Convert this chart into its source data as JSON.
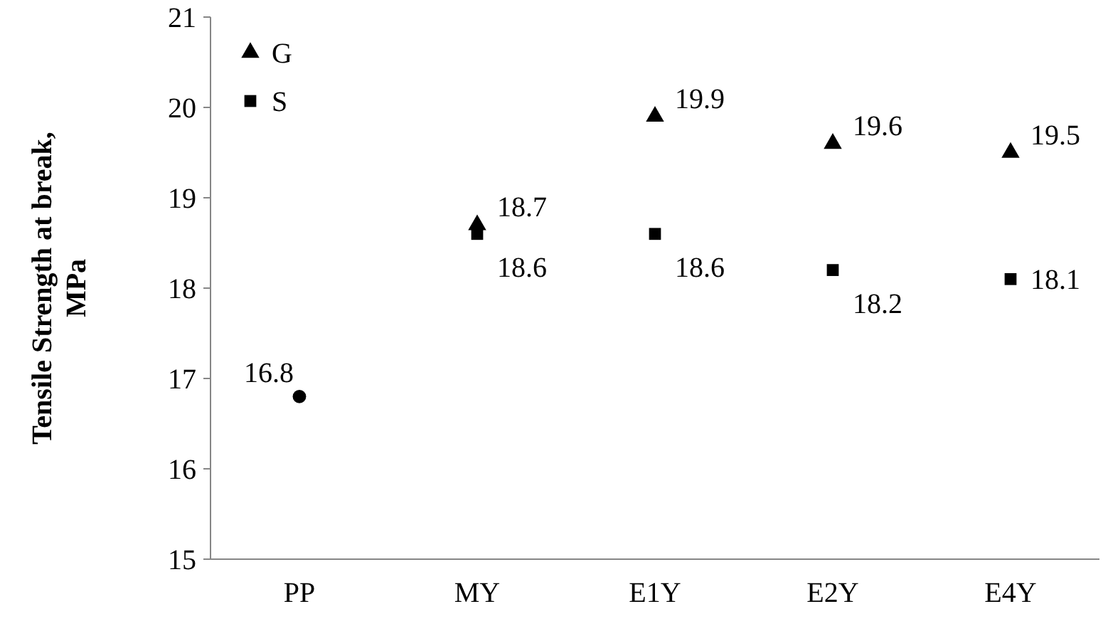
{
  "chart_data": {
    "type": "scatter",
    "ylabel": "Tensile Strength at break, MPa",
    "categories": [
      "PP",
      "MY",
      "E1Y",
      "E2Y",
      "E4Y"
    ],
    "series": [
      {
        "name": "G",
        "color": "#000000",
        "marker": "triangle",
        "values": [
          null,
          18.7,
          19.9,
          19.6,
          19.5
        ]
      },
      {
        "name": "S",
        "color": "#000000",
        "marker": "square",
        "values": [
          null,
          18.6,
          18.6,
          18.2,
          18.1
        ]
      },
      {
        "color": "#000000",
        "marker": "circle",
        "values": [
          16.8,
          null,
          null,
          null,
          null
        ]
      }
    ],
    "ylim": [
      15,
      21
    ],
    "yticks": [
      15,
      16,
      17,
      18,
      19,
      20,
      21
    ],
    "grid": false,
    "legend": "top left",
    "data_labels": true
  }
}
